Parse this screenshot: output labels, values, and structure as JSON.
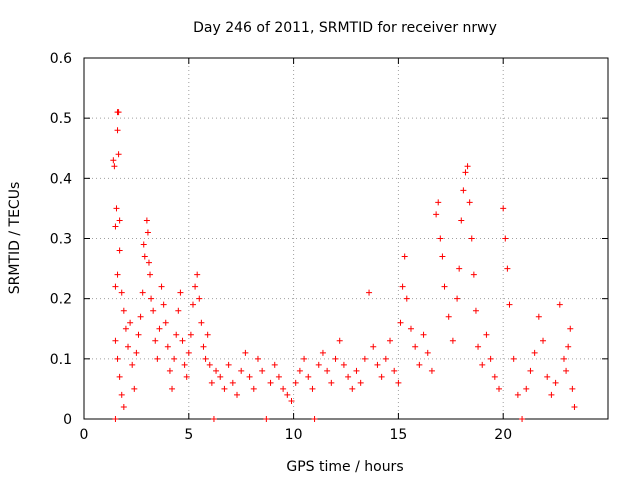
{
  "chart_data": {
    "type": "scatter",
    "title": "Day 246 of 2011, SRMTID for receiver nrwy",
    "xlabel": "GPS time / hours",
    "ylabel": "SRMTID / TECUs",
    "xlim": [
      0,
      25
    ],
    "ylim": [
      0,
      0.6
    ],
    "xticks": [
      0,
      5,
      10,
      15,
      20
    ],
    "xtick_labels": [
      "0",
      "5",
      "10",
      "15",
      "20"
    ],
    "yticks": [
      0,
      0.1,
      0.2,
      0.3,
      0.4,
      0.5,
      0.6
    ],
    "ytick_labels": [
      "0",
      "0.1",
      "0.2",
      "0.3",
      "0.4",
      "0.5",
      "0.6"
    ],
    "grid": true,
    "marker": "+",
    "color": "#ff0000",
    "series": [
      {
        "name": "nrwy",
        "points": [
          [
            1.4,
            0.43
          ],
          [
            1.45,
            0.42
          ],
          [
            1.5,
            0.32
          ],
          [
            1.55,
            0.35
          ],
          [
            1.6,
            0.51
          ],
          [
            1.6,
            0.48
          ],
          [
            1.65,
            0.44
          ],
          [
            1.65,
            0.51
          ],
          [
            1.7,
            0.33
          ],
          [
            1.5,
            0.22
          ],
          [
            1.6,
            0.24
          ],
          [
            1.7,
            0.28
          ],
          [
            1.8,
            0.21
          ],
          [
            1.9,
            0.18
          ],
          [
            1.5,
            0.13
          ],
          [
            1.6,
            0.1
          ],
          [
            1.7,
            0.07
          ],
          [
            1.8,
            0.04
          ],
          [
            1.9,
            0.02
          ],
          [
            1.5,
            0.0
          ],
          [
            2.0,
            0.15
          ],
          [
            2.1,
            0.12
          ],
          [
            2.2,
            0.16
          ],
          [
            2.3,
            0.09
          ],
          [
            2.4,
            0.05
          ],
          [
            2.5,
            0.11
          ],
          [
            2.6,
            0.14
          ],
          [
            2.7,
            0.17
          ],
          [
            2.8,
            0.21
          ],
          [
            2.9,
            0.27
          ],
          [
            3.0,
            0.33
          ],
          [
            3.05,
            0.31
          ],
          [
            3.1,
            0.26
          ],
          [
            3.15,
            0.24
          ],
          [
            2.85,
            0.29
          ],
          [
            3.2,
            0.2
          ],
          [
            3.3,
            0.18
          ],
          [
            3.4,
            0.13
          ],
          [
            3.5,
            0.1
          ],
          [
            3.6,
            0.15
          ],
          [
            3.7,
            0.22
          ],
          [
            3.8,
            0.19
          ],
          [
            3.9,
            0.16
          ],
          [
            4.0,
            0.12
          ],
          [
            4.1,
            0.08
          ],
          [
            4.2,
            0.05
          ],
          [
            4.3,
            0.1
          ],
          [
            4.4,
            0.14
          ],
          [
            4.5,
            0.18
          ],
          [
            4.6,
            0.21
          ],
          [
            4.7,
            0.13
          ],
          [
            4.8,
            0.09
          ],
          [
            4.9,
            0.07
          ],
          [
            5.0,
            0.11
          ],
          [
            5.1,
            0.14
          ],
          [
            5.2,
            0.19
          ],
          [
            5.3,
            0.22
          ],
          [
            5.4,
            0.24
          ],
          [
            5.5,
            0.2
          ],
          [
            5.6,
            0.16
          ],
          [
            5.7,
            0.12
          ],
          [
            5.8,
            0.1
          ],
          [
            5.9,
            0.14
          ],
          [
            6.0,
            0.09
          ],
          [
            6.1,
            0.06
          ],
          [
            6.2,
            0.0
          ],
          [
            6.3,
            0.08
          ],
          [
            6.5,
            0.07
          ],
          [
            6.7,
            0.05
          ],
          [
            6.9,
            0.09
          ],
          [
            7.1,
            0.06
          ],
          [
            7.3,
            0.04
          ],
          [
            7.5,
            0.08
          ],
          [
            7.7,
            0.11
          ],
          [
            7.9,
            0.07
          ],
          [
            8.1,
            0.05
          ],
          [
            8.3,
            0.1
          ],
          [
            8.5,
            0.08
          ],
          [
            8.7,
            0.0
          ],
          [
            8.9,
            0.06
          ],
          [
            9.1,
            0.09
          ],
          [
            9.3,
            0.07
          ],
          [
            9.5,
            0.05
          ],
          [
            9.7,
            0.04
          ],
          [
            9.9,
            0.03
          ],
          [
            10.1,
            0.06
          ],
          [
            10.3,
            0.08
          ],
          [
            10.5,
            0.1
          ],
          [
            10.7,
            0.07
          ],
          [
            10.9,
            0.05
          ],
          [
            11.0,
            0.0
          ],
          [
            11.2,
            0.09
          ],
          [
            11.4,
            0.11
          ],
          [
            11.6,
            0.08
          ],
          [
            11.8,
            0.06
          ],
          [
            12.0,
            0.1
          ],
          [
            12.2,
            0.13
          ],
          [
            12.4,
            0.09
          ],
          [
            12.6,
            0.07
          ],
          [
            12.8,
            0.05
          ],
          [
            13.0,
            0.08
          ],
          [
            13.2,
            0.06
          ],
          [
            13.4,
            0.1
          ],
          [
            13.6,
            0.21
          ],
          [
            13.8,
            0.12
          ],
          [
            14.0,
            0.09
          ],
          [
            14.2,
            0.07
          ],
          [
            14.4,
            0.1
          ],
          [
            14.6,
            0.13
          ],
          [
            14.8,
            0.08
          ],
          [
            15.0,
            0.06
          ],
          [
            15.1,
            0.16
          ],
          [
            15.2,
            0.22
          ],
          [
            15.3,
            0.27
          ],
          [
            15.4,
            0.2
          ],
          [
            15.6,
            0.15
          ],
          [
            15.8,
            0.12
          ],
          [
            16.0,
            0.09
          ],
          [
            16.2,
            0.14
          ],
          [
            16.4,
            0.11
          ],
          [
            16.6,
            0.08
          ],
          [
            16.8,
            0.34
          ],
          [
            16.9,
            0.36
          ],
          [
            17.0,
            0.3
          ],
          [
            17.1,
            0.27
          ],
          [
            17.2,
            0.22
          ],
          [
            17.4,
            0.17
          ],
          [
            17.6,
            0.13
          ],
          [
            17.8,
            0.2
          ],
          [
            17.9,
            0.25
          ],
          [
            18.0,
            0.33
          ],
          [
            18.1,
            0.38
          ],
          [
            18.2,
            0.41
          ],
          [
            18.3,
            0.42
          ],
          [
            18.4,
            0.36
          ],
          [
            18.5,
            0.3
          ],
          [
            18.6,
            0.24
          ],
          [
            18.7,
            0.18
          ],
          [
            18.8,
            0.12
          ],
          [
            19.0,
            0.09
          ],
          [
            19.2,
            0.14
          ],
          [
            19.4,
            0.1
          ],
          [
            19.6,
            0.07
          ],
          [
            19.8,
            0.05
          ],
          [
            20.0,
            0.35
          ],
          [
            20.1,
            0.3
          ],
          [
            20.2,
            0.25
          ],
          [
            20.3,
            0.19
          ],
          [
            20.5,
            0.1
          ],
          [
            20.7,
            0.04
          ],
          [
            20.9,
            0.0
          ],
          [
            21.1,
            0.05
          ],
          [
            21.3,
            0.08
          ],
          [
            21.5,
            0.11
          ],
          [
            21.7,
            0.17
          ],
          [
            21.9,
            0.13
          ],
          [
            22.1,
            0.07
          ],
          [
            22.3,
            0.04
          ],
          [
            22.5,
            0.06
          ],
          [
            22.7,
            0.19
          ],
          [
            22.9,
            0.1
          ],
          [
            23.0,
            0.08
          ],
          [
            23.1,
            0.12
          ],
          [
            23.2,
            0.15
          ],
          [
            23.3,
            0.05
          ],
          [
            23.4,
            0.02
          ]
        ]
      }
    ]
  }
}
